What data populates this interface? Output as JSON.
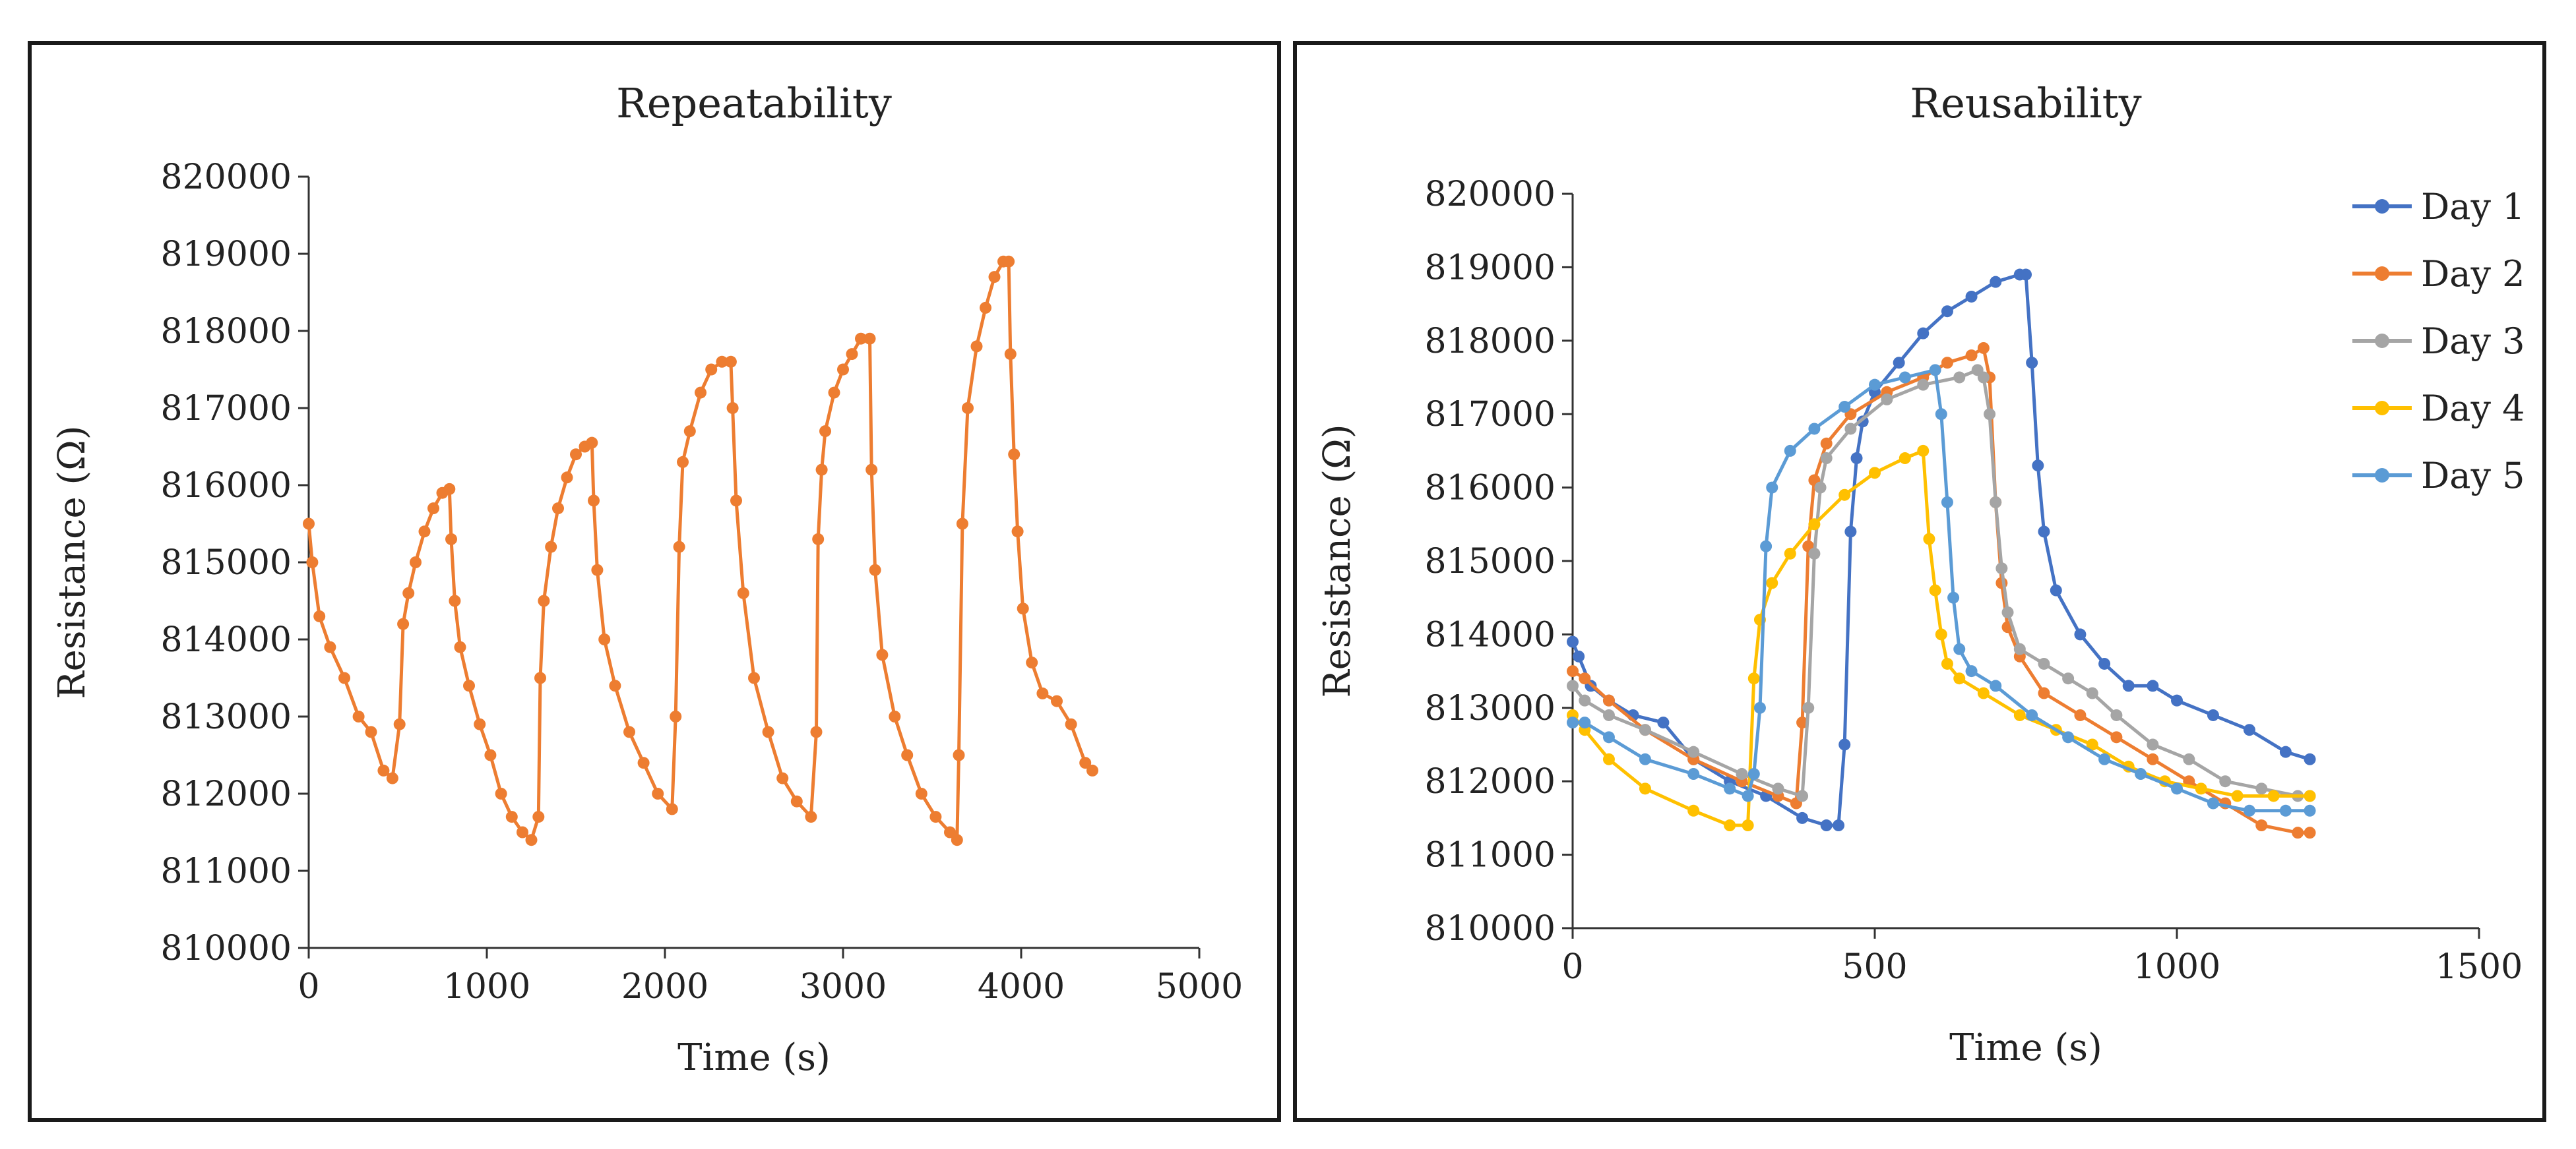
{
  "chart_data": [
    {
      "type": "line",
      "title": "Repeatability",
      "xlabel": "Time (s)",
      "ylabel": "Resistance (Ω)",
      "xlim": [
        0,
        5000
      ],
      "ylim": [
        810000,
        820000
      ],
      "xticks": [
        "0",
        "1000",
        "2000",
        "3000",
        "4000",
        "5000"
      ],
      "yticks": [
        "810000",
        "811000",
        "812000",
        "813000",
        "814000",
        "815000",
        "816000",
        "817000",
        "818000",
        "819000",
        "820000"
      ],
      "legend": "none",
      "series": [
        {
          "name": "Repeatability",
          "color": "#ed7d31",
          "x": [
            0,
            20,
            60,
            120,
            200,
            280,
            350,
            420,
            470,
            510,
            530,
            560,
            600,
            650,
            700,
            750,
            790,
            800,
            820,
            850,
            900,
            960,
            1020,
            1080,
            1140,
            1200,
            1250,
            1290,
            1300,
            1320,
            1360,
            1400,
            1450,
            1500,
            1550,
            1590,
            1600,
            1620,
            1660,
            1720,
            1800,
            1880,
            1960,
            2040,
            2060,
            2080,
            2100,
            2140,
            2200,
            2260,
            2320,
            2370,
            2380,
            2400,
            2440,
            2500,
            2580,
            2660,
            2740,
            2820,
            2850,
            2860,
            2880,
            2900,
            2950,
            3000,
            3050,
            3100,
            3150,
            3160,
            3180,
            3220,
            3290,
            3360,
            3440,
            3520,
            3600,
            3640,
            3650,
            3670,
            3700,
            3750,
            3800,
            3850,
            3900,
            3930,
            3940,
            3960,
            3980,
            4010,
            4060,
            4120,
            4200,
            4280,
            4360,
            4400
          ],
          "y": [
            815500,
            815000,
            814300,
            813900,
            813500,
            813000,
            812800,
            812300,
            812200,
            812900,
            814200,
            814600,
            815000,
            815400,
            815700,
            815900,
            815950,
            815300,
            814500,
            813900,
            813400,
            812900,
            812500,
            812000,
            811700,
            811500,
            811400,
            811700,
            813500,
            814500,
            815200,
            815700,
            816100,
            816400,
            816500,
            816550,
            815800,
            814900,
            814000,
            813400,
            812800,
            812400,
            812000,
            811800,
            813000,
            815200,
            816300,
            816700,
            817200,
            817500,
            817600,
            817600,
            817000,
            815800,
            814600,
            813500,
            812800,
            812200,
            811900,
            811700,
            812800,
            815300,
            816200,
            816700,
            817200,
            817500,
            817700,
            817900,
            817900,
            816200,
            814900,
            813800,
            813000,
            812500,
            812000,
            811700,
            811500,
            811400,
            812500,
            815500,
            817000,
            817800,
            818300,
            818700,
            818900,
            818900,
            817700,
            816400,
            815400,
            814400,
            813700,
            813300,
            813200,
            812900,
            812400,
            812300
          ]
        }
      ]
    },
    {
      "type": "line",
      "title": "Reusability",
      "xlabel": "Time (s)",
      "ylabel": "Resistance (Ω)",
      "xlim": [
        0,
        1500
      ],
      "ylim": [
        810000,
        820000
      ],
      "xticks": [
        "0",
        "500",
        "1000",
        "1500"
      ],
      "yticks": [
        "810000",
        "811000",
        "812000",
        "813000",
        "814000",
        "815000",
        "816000",
        "817000",
        "818000",
        "819000",
        "820000"
      ],
      "legend": "right",
      "series": [
        {
          "name": "Day 1",
          "color": "#4472c4",
          "x": [
            0,
            10,
            30,
            60,
            100,
            150,
            200,
            260,
            320,
            380,
            420,
            440,
            450,
            460,
            470,
            480,
            500,
            540,
            580,
            620,
            660,
            700,
            740,
            750,
            760,
            770,
            780,
            800,
            840,
            880,
            920,
            960,
            1000,
            1060,
            1120,
            1180,
            1220
          ],
          "y": [
            813900,
            813700,
            813300,
            813100,
            812900,
            812800,
            812300,
            812000,
            811800,
            811500,
            811400,
            811400,
            812500,
            815400,
            816400,
            816900,
            817300,
            817700,
            818100,
            818400,
            818600,
            818800,
            818900,
            818900,
            817700,
            816300,
            815400,
            814600,
            814000,
            813600,
            813300,
            813300,
            813100,
            812900,
            812700,
            812400,
            812300
          ]
        },
        {
          "name": "Day 2",
          "color": "#ed7d31",
          "x": [
            0,
            20,
            60,
            120,
            200,
            280,
            340,
            370,
            380,
            390,
            400,
            420,
            460,
            520,
            580,
            620,
            660,
            680,
            690,
            700,
            710,
            720,
            740,
            780,
            840,
            900,
            960,
            1020,
            1080,
            1140,
            1200,
            1220
          ],
          "y": [
            813500,
            813400,
            813100,
            812700,
            812300,
            812000,
            811800,
            811700,
            812800,
            815200,
            816100,
            816600,
            817000,
            817300,
            817500,
            817700,
            817800,
            817900,
            817500,
            815800,
            814700,
            814100,
            813700,
            813200,
            812900,
            812600,
            812300,
            812000,
            811700,
            811400,
            811300,
            811300
          ]
        },
        {
          "name": "Day 3",
          "color": "#a5a5a5",
          "x": [
            0,
            20,
            60,
            120,
            200,
            280,
            340,
            380,
            390,
            400,
            410,
            420,
            460,
            520,
            580,
            640,
            670,
            680,
            690,
            700,
            710,
            720,
            740,
            780,
            820,
            860,
            900,
            960,
            1020,
            1080,
            1140,
            1200,
            1220
          ],
          "y": [
            813300,
            813100,
            812900,
            812700,
            812400,
            812100,
            811900,
            811800,
            813000,
            815100,
            816000,
            816400,
            816800,
            817200,
            817400,
            817500,
            817600,
            817500,
            817000,
            815800,
            814900,
            814300,
            813800,
            813600,
            813400,
            813200,
            812900,
            812500,
            812300,
            812000,
            811900,
            811800,
            811800
          ]
        },
        {
          "name": "Day 4",
          "color": "#ffc000",
          "x": [
            0,
            20,
            60,
            120,
            200,
            260,
            290,
            300,
            310,
            330,
            360,
            400,
            450,
            500,
            550,
            580,
            590,
            600,
            610,
            620,
            640,
            680,
            740,
            800,
            860,
            920,
            980,
            1040,
            1100,
            1160,
            1220
          ],
          "y": [
            812900,
            812700,
            812300,
            811900,
            811600,
            811400,
            811400,
            813400,
            814200,
            814700,
            815100,
            815500,
            815900,
            816200,
            816400,
            816500,
            815300,
            814600,
            814000,
            813600,
            813400,
            813200,
            812900,
            812700,
            812500,
            812200,
            812000,
            811900,
            811800,
            811800,
            811800
          ]
        },
        {
          "name": "Day 5",
          "color": "#5b9bd5",
          "x": [
            0,
            20,
            60,
            120,
            200,
            260,
            290,
            300,
            310,
            320,
            330,
            360,
            400,
            450,
            500,
            550,
            600,
            610,
            620,
            630,
            640,
            660,
            700,
            760,
            820,
            880,
            940,
            1000,
            1060,
            1120,
            1180,
            1220
          ],
          "y": [
            812800,
            812800,
            812600,
            812300,
            812100,
            811900,
            811800,
            812100,
            813000,
            815200,
            816000,
            816500,
            816800,
            817100,
            817400,
            817500,
            817600,
            817000,
            815800,
            814500,
            813800,
            813500,
            813300,
            812900,
            812600,
            812300,
            812100,
            811900,
            811700,
            811600,
            811600,
            811600
          ]
        }
      ]
    }
  ]
}
